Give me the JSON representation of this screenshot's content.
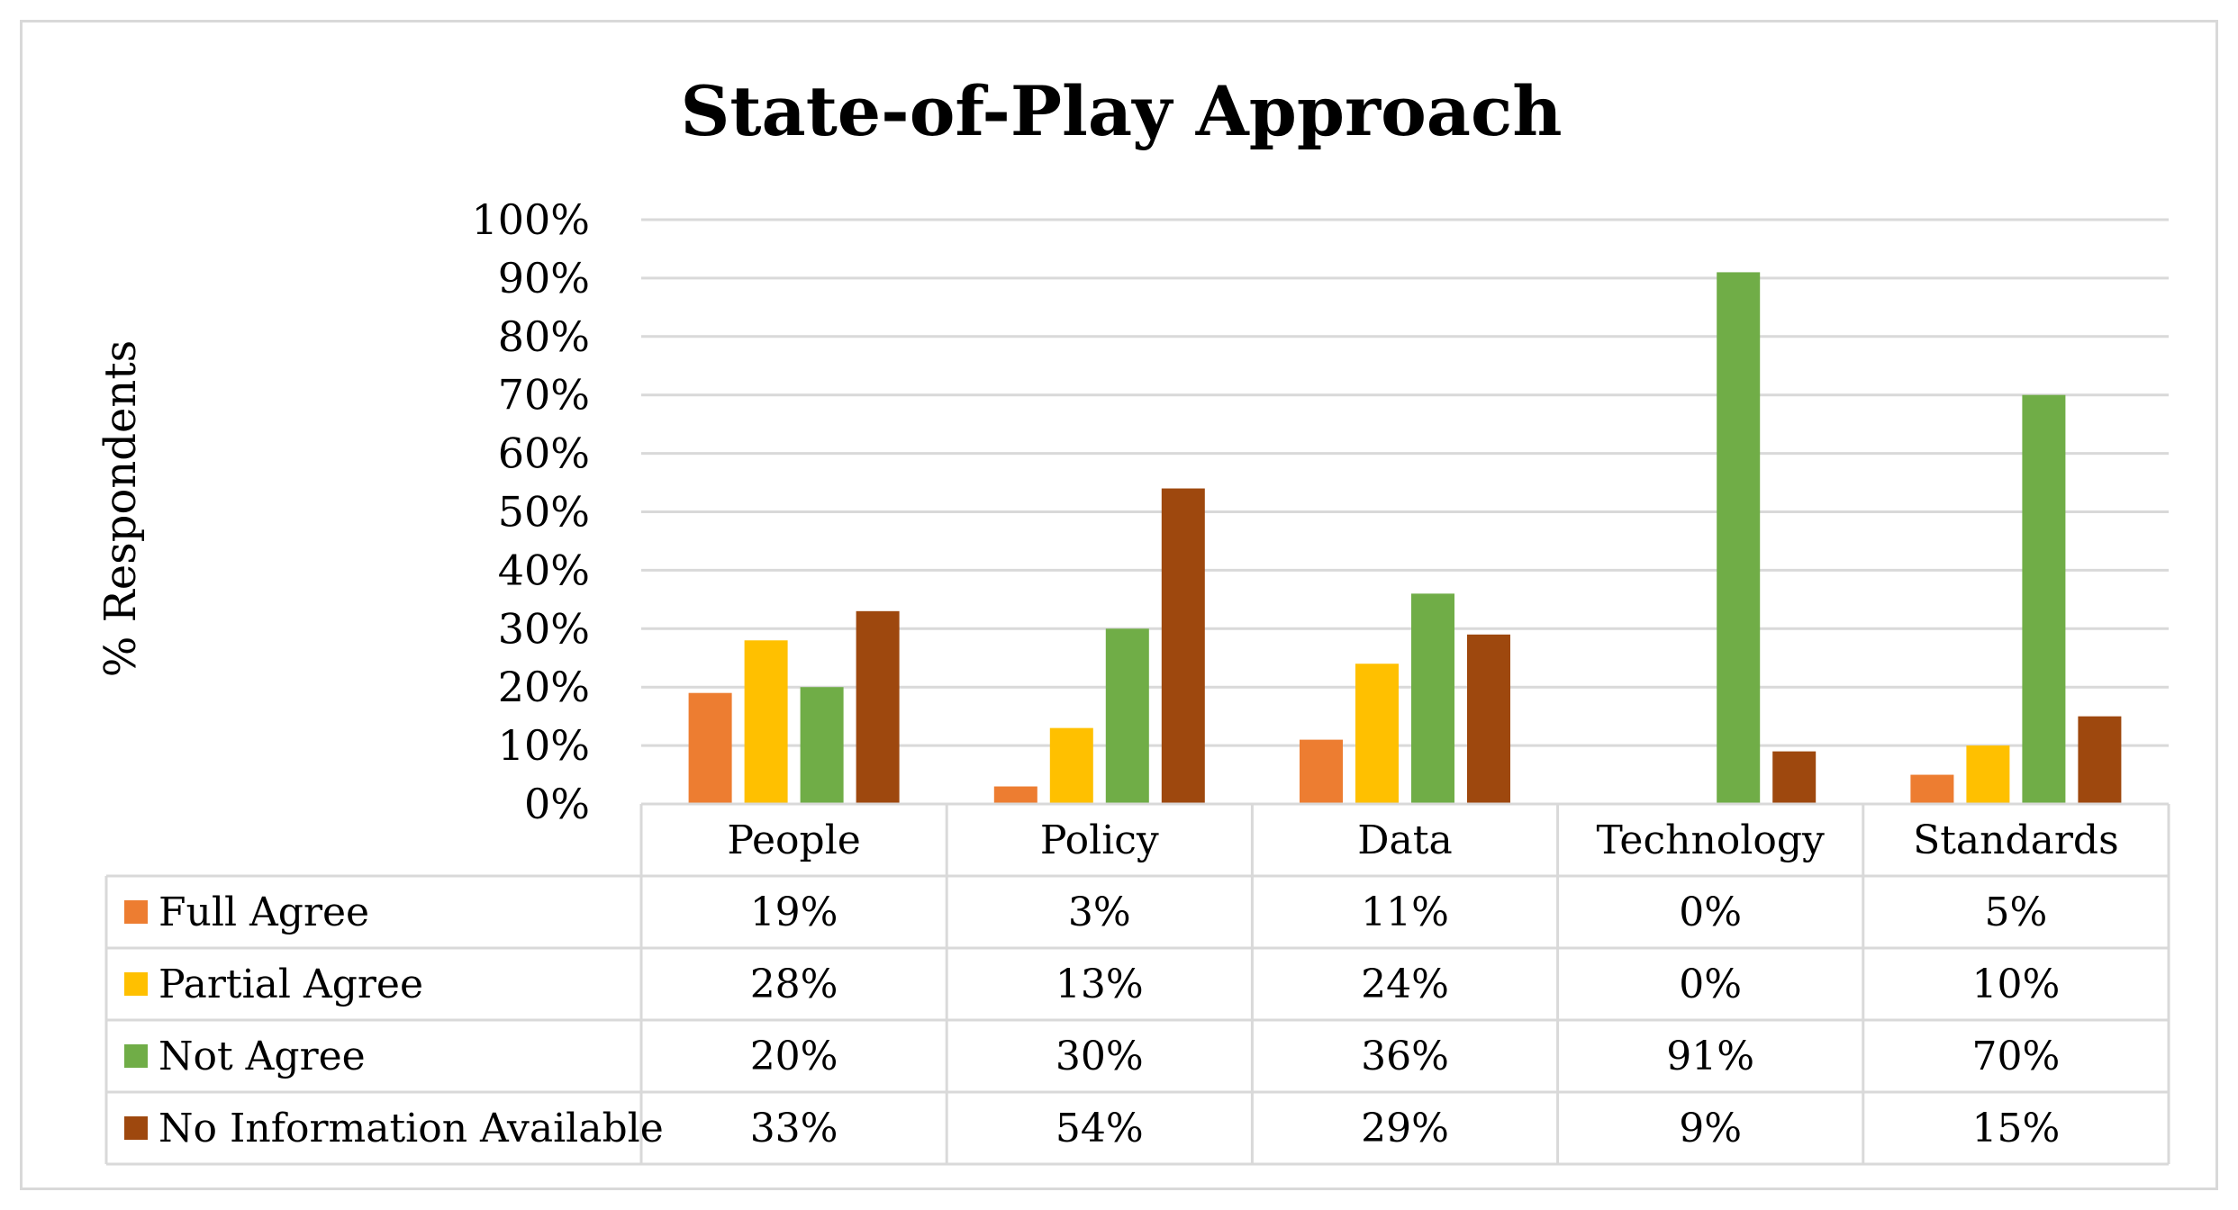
{
  "chart_data": {
    "type": "bar",
    "title": "State-of-Play Approach",
    "ylabel": "% Respondents",
    "xlabel": "",
    "ylim": [
      0,
      100
    ],
    "yticks": [
      0,
      10,
      20,
      30,
      40,
      50,
      60,
      70,
      80,
      90,
      100
    ],
    "ytick_suffix": "%",
    "categories": [
      "People",
      "Policy",
      "Data",
      "Technology",
      "Standards"
    ],
    "series": [
      {
        "name": "Full Agree",
        "color": "#ed7d31",
        "values": [
          19,
          3,
          11,
          0,
          5
        ],
        "labels": [
          "19%",
          "3%",
          "11%",
          "0%",
          "5%"
        ]
      },
      {
        "name": "Partial Agree",
        "color": "#ffc000",
        "values": [
          28,
          13,
          24,
          0,
          10
        ],
        "labels": [
          "28%",
          "13%",
          "24%",
          "0%",
          "10%"
        ]
      },
      {
        "name": "Not Agree",
        "color": "#70ad47",
        "values": [
          20,
          30,
          36,
          91,
          70
        ],
        "labels": [
          "20%",
          "30%",
          "36%",
          "91%",
          "70%"
        ]
      },
      {
        "name": "No Information Available",
        "color": "#9e480e",
        "values": [
          33,
          54,
          29,
          9,
          15
        ],
        "labels": [
          "33%",
          "54%",
          "29%",
          "9%",
          "15%"
        ]
      }
    ],
    "grid": true,
    "legend": "data-table"
  }
}
